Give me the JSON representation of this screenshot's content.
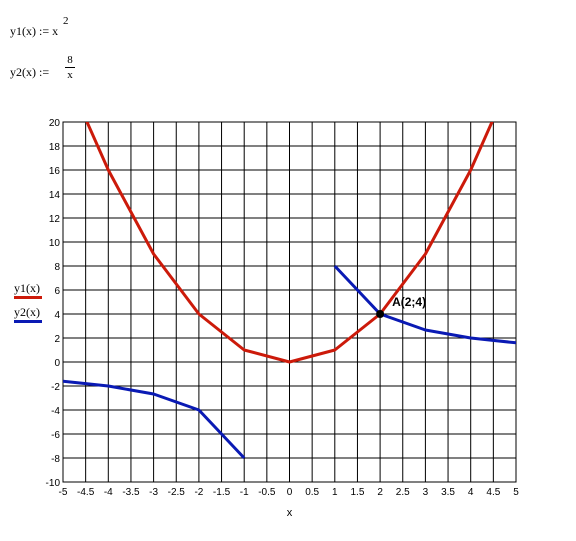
{
  "formulas": {
    "y1_lhs": "y1(x) := x",
    "y1_exp": "2",
    "y2_lhs": "y2(x) :=",
    "y2_num": "8",
    "y2_den": "x"
  },
  "legend": [
    {
      "label": "y1(x)",
      "color": "#cc1a0a"
    },
    {
      "label": "y2(x)",
      "color": "#0a1ab4"
    }
  ],
  "chart_data": {
    "type": "line",
    "xlabel": "x",
    "ylabel": "",
    "xlim": [
      -5,
      5
    ],
    "ylim": [
      -10,
      20
    ],
    "grid": true,
    "x_ticks": [
      -5,
      -4.5,
      -4,
      -3.5,
      -3,
      -2.5,
      -2,
      -1.5,
      -1,
      -0.5,
      0,
      0.5,
      1,
      1.5,
      2,
      2.5,
      3,
      3.5,
      4,
      4.5,
      5
    ],
    "x_tick_labels": [
      "-5",
      "-4.5",
      "-4",
      "-3.5",
      "-3",
      "-2.5",
      "-2",
      "-1.5",
      "-1",
      "-0.5",
      "0",
      "0.5",
      "1",
      "1.5",
      "2",
      "2.5",
      "3",
      "3.5",
      "4",
      "4.5",
      "5"
    ],
    "y_ticks": [
      -10,
      -8,
      -6,
      -4,
      -2,
      0,
      2,
      4,
      6,
      8,
      10,
      12,
      14,
      16,
      18,
      20
    ],
    "y_tick_labels": [
      "-10",
      "-8",
      "-6",
      "-4",
      "-2",
      "0",
      "2",
      "4",
      "6",
      "8",
      "10",
      "12",
      "14",
      "16",
      "18",
      "20"
    ],
    "series": [
      {
        "name": "y1(x)",
        "color": "#cc1a0a",
        "segments": [
          [
            [
              -4.5,
              20.25
            ],
            [
              -4,
              16
            ],
            [
              -3,
              9
            ],
            [
              -2,
              4
            ],
            [
              -1,
              1
            ],
            [
              0,
              0
            ],
            [
              1,
              1
            ],
            [
              2,
              4
            ],
            [
              3,
              9
            ],
            [
              4,
              16
            ],
            [
              4.5,
              20.25
            ]
          ]
        ]
      },
      {
        "name": "y2(x)",
        "color": "#0a1ab4",
        "segments": [
          [
            [
              -5,
              -1.6
            ],
            [
              -4,
              -2
            ],
            [
              -3,
              -2.667
            ],
            [
              -2,
              -4
            ],
            [
              -1,
              -8
            ]
          ],
          [
            [
              1,
              8
            ],
            [
              2,
              4
            ],
            [
              3,
              2.667
            ],
            [
              4,
              2
            ],
            [
              5,
              1.6
            ]
          ]
        ]
      }
    ],
    "annotations": [
      {
        "x": 2,
        "y": 4,
        "text": "A(2;4)"
      }
    ]
  }
}
